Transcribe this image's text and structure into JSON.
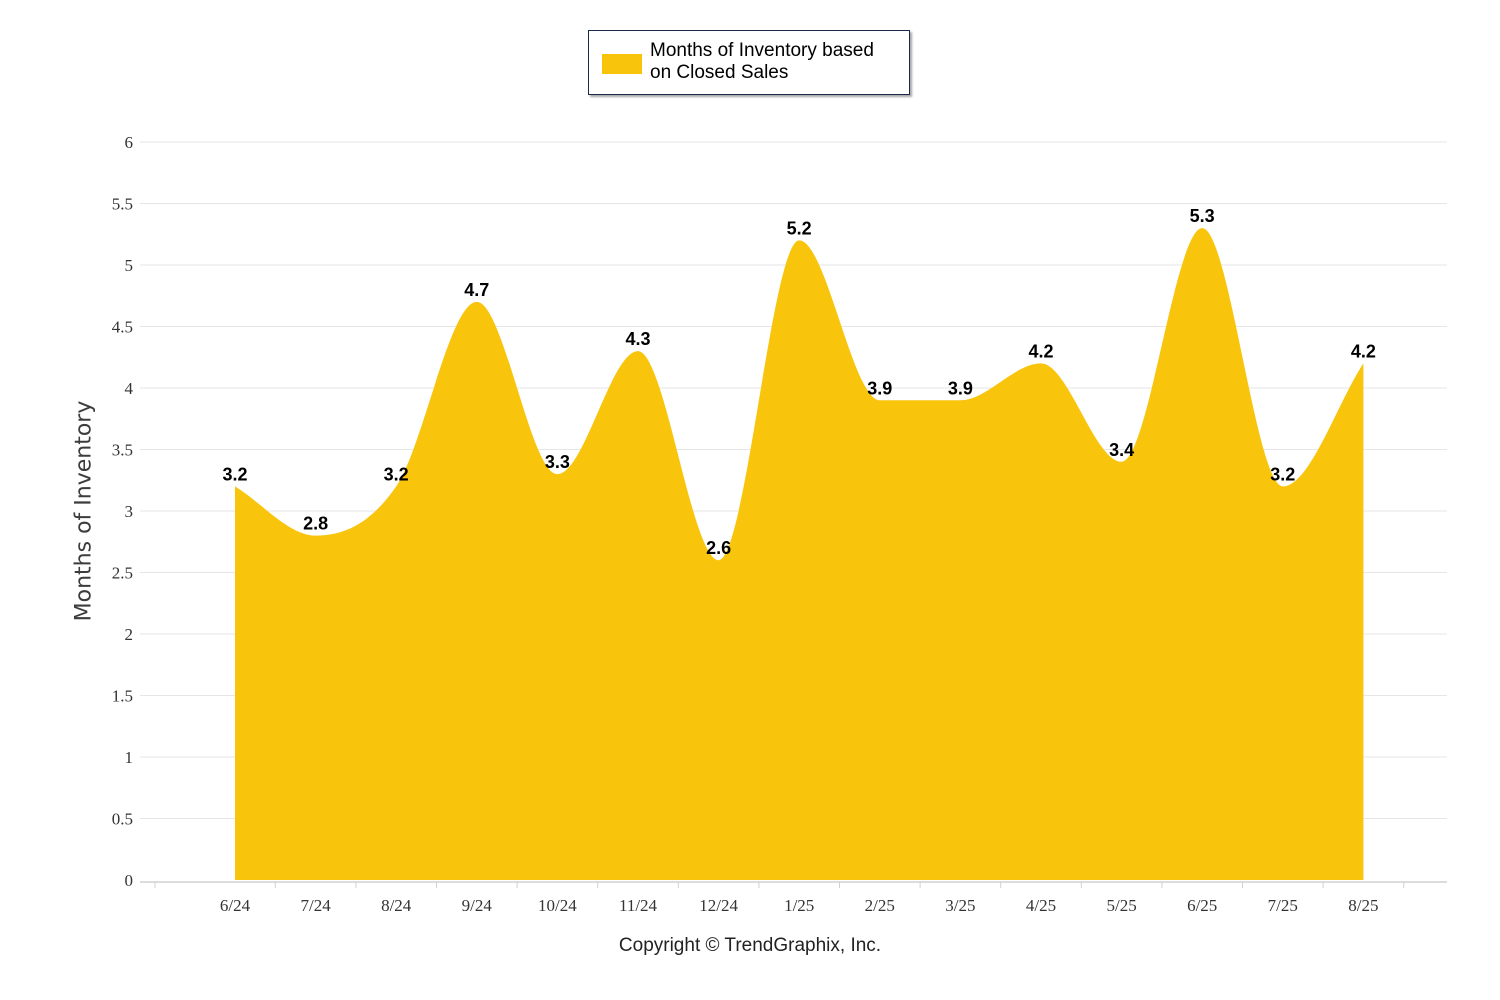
{
  "legend": {
    "label": "Months of Inventory based on Closed Sales"
  },
  "footer": {
    "copyright": "Copyright © TrendGraphix, Inc."
  },
  "colors": {
    "area": "#F8C40C",
    "grid": "#e6e6e6",
    "axis": "#d0d0d0"
  },
  "chart_data": {
    "type": "area",
    "smooth": true,
    "title": "",
    "xlabel": "",
    "ylabel": "Months of Inventory",
    "ylim": [
      0,
      6
    ],
    "y_ticks": [
      0,
      0.5,
      1,
      1.5,
      2,
      2.5,
      3,
      3.5,
      4,
      4.5,
      5,
      5.5,
      6
    ],
    "grid": true,
    "legend_position": "top-center",
    "categories": [
      "6/24",
      "7/24",
      "8/24",
      "9/24",
      "10/24",
      "11/24",
      "12/24",
      "1/25",
      "2/25",
      "3/25",
      "4/25",
      "5/25",
      "6/25",
      "7/25",
      "8/25"
    ],
    "series": [
      {
        "name": "Months of Inventory based on Closed Sales",
        "color": "#F8C40C",
        "values": [
          3.2,
          2.8,
          3.2,
          4.7,
          3.3,
          4.3,
          2.6,
          5.2,
          3.9,
          3.9,
          4.2,
          3.4,
          5.3,
          3.2,
          4.2
        ]
      }
    ]
  }
}
